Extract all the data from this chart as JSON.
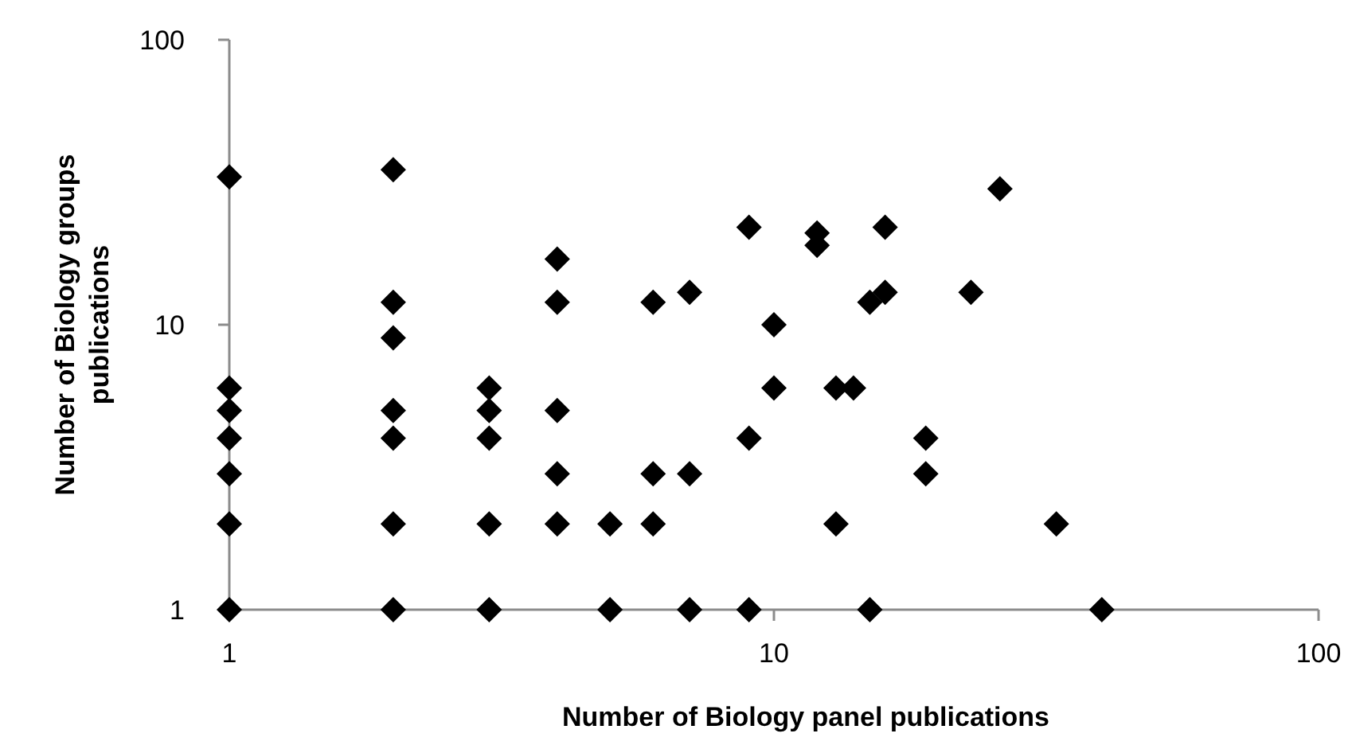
{
  "chart_data": {
    "type": "scatter",
    "xlabel": "Number of Biology panel publications",
    "ylabel": "Number of Biology groups publications",
    "log": "xy",
    "xlim": [
      1,
      100
    ],
    "ylim": [
      1,
      100
    ],
    "xticks": [
      1,
      10,
      100
    ],
    "yticks": [
      1,
      10,
      100
    ],
    "grid": false,
    "marker": "diamond",
    "series": [
      {
        "color": "#000000",
        "x": [
          1,
          1,
          1,
          1,
          1,
          1,
          1,
          2,
          2,
          2,
          2,
          2,
          2,
          2,
          3,
          3,
          3,
          3,
          3,
          4,
          4,
          4,
          4,
          4,
          5,
          5,
          6,
          6,
          6,
          7,
          7,
          7,
          9,
          9,
          9,
          10,
          10,
          12,
          12,
          13,
          13,
          14,
          15,
          15,
          16,
          16,
          19,
          19,
          23,
          26,
          33,
          40
        ],
        "values": [
          33,
          6,
          5,
          4,
          3,
          2,
          1,
          35,
          12,
          9,
          5,
          4,
          2,
          1,
          6,
          5,
          4,
          2,
          1,
          17,
          12,
          5,
          3,
          2,
          2,
          1,
          12,
          3,
          2,
          13,
          3,
          1,
          22,
          4,
          1,
          10,
          6,
          21,
          19,
          6,
          2,
          6,
          12,
          1,
          22,
          13,
          4,
          3,
          13,
          30,
          2,
          1
        ]
      }
    ]
  }
}
